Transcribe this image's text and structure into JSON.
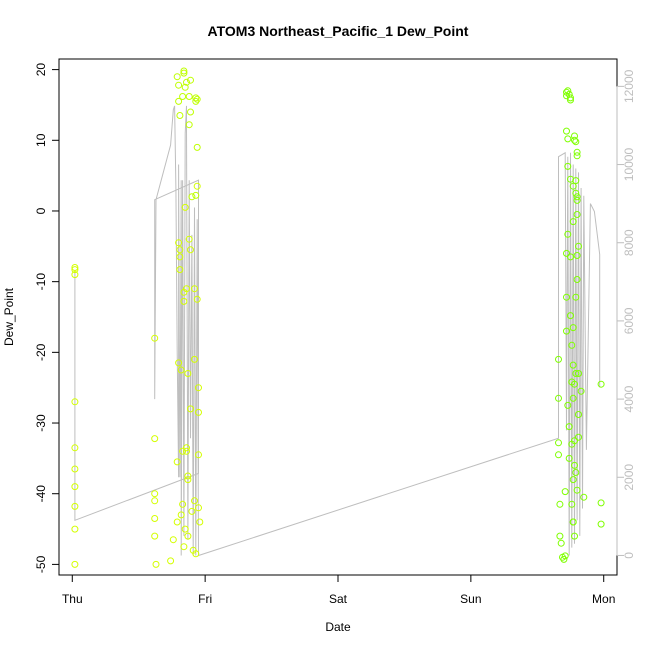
{
  "chart_data": {
    "type": "scatter",
    "title": "ATOM3 Northeast_Pacific_1 Dew_Point",
    "xlabel": "Date",
    "ylabel": "Dew_Point",
    "x_ticks": [
      {
        "label": "Thu",
        "day": 0
      },
      {
        "label": "Fri",
        "day": 1
      },
      {
        "label": "Sat",
        "day": 2
      },
      {
        "label": "Sun",
        "day": 3
      },
      {
        "label": "Mon",
        "day": 4
      }
    ],
    "xlim": [
      -0.1,
      4.1
    ],
    "ylim": [
      -51.5,
      21.5
    ],
    "y_ticks": [
      -50,
      -40,
      -30,
      -20,
      -10,
      0,
      10,
      20
    ],
    "y2lim": [
      -500,
      12700
    ],
    "y2_ticks": [
      0,
      2000,
      4000,
      6000,
      8000,
      10000,
      12000
    ],
    "grid": false,
    "legend": "none",
    "colors": {
      "points_yellow": "#d4ff00",
      "points_green": "#7fff00",
      "line": "#bebebe",
      "axis": "#000000",
      "right_axis": "#bebebe"
    },
    "series": [
      {
        "color": "#d4ff00",
        "points": [
          [
            0.02,
            -8
          ],
          [
            0.02,
            -8.3
          ],
          [
            0.02,
            -9
          ],
          [
            0.02,
            -27
          ],
          [
            0.02,
            -33.5
          ],
          [
            0.02,
            -36.5
          ],
          [
            0.02,
            -39
          ],
          [
            0.02,
            -41.8
          ],
          [
            0.02,
            -45
          ],
          [
            0.02,
            -50
          ],
          [
            0.62,
            -18
          ],
          [
            0.62,
            -32.2
          ],
          [
            0.62,
            -40
          ],
          [
            0.62,
            -41
          ],
          [
            0.62,
            -43.5
          ],
          [
            0.62,
            -46
          ],
          [
            0.63,
            -50
          ],
          [
            0.74,
            -49.5
          ],
          [
            0.76,
            -46.5
          ],
          [
            0.79,
            -35.5
          ],
          [
            0.79,
            -44
          ],
          [
            0.8,
            -4.5
          ],
          [
            0.8,
            -21.5
          ],
          [
            0.81,
            -5.5
          ],
          [
            0.81,
            -6.5
          ],
          [
            0.81,
            -8.3
          ],
          [
            0.82,
            -22.5
          ],
          [
            0.82,
            -43
          ],
          [
            0.83,
            -34
          ],
          [
            0.83,
            -41.5
          ],
          [
            0.84,
            -11.5
          ],
          [
            0.84,
            -12.8
          ],
          [
            0.84,
            -47.5
          ],
          [
            0.85,
            0.5
          ],
          [
            0.85,
            -45
          ],
          [
            0.86,
            -11
          ],
          [
            0.86,
            -33.5
          ],
          [
            0.86,
            -34
          ],
          [
            0.87,
            -37.5
          ],
          [
            0.87,
            -38
          ],
          [
            0.87,
            -23
          ],
          [
            0.87,
            -46
          ],
          [
            0.88,
            -4
          ],
          [
            0.89,
            -5.5
          ],
          [
            0.89,
            -28
          ],
          [
            0.9,
            -42.5
          ],
          [
            0.91,
            -48
          ],
          [
            0.92,
            -11
          ],
          [
            0.92,
            -21
          ],
          [
            0.92,
            -41
          ],
          [
            0.93,
            -48.5
          ],
          [
            0.94,
            3.5
          ],
          [
            0.94,
            -12.5
          ],
          [
            0.95,
            -25
          ],
          [
            0.95,
            -28.5
          ],
          [
            0.95,
            -34.5
          ],
          [
            0.95,
            -42
          ],
          [
            0.96,
            -44
          ]
        ]
      },
      {
        "color": "#bfff00",
        "points": [
          [
            0.79,
            19
          ],
          [
            0.8,
            17.8
          ],
          [
            0.8,
            15.5
          ],
          [
            0.81,
            13.5
          ],
          [
            0.83,
            16.2
          ],
          [
            0.84,
            19.8
          ],
          [
            0.84,
            19.5
          ],
          [
            0.85,
            17.5
          ],
          [
            0.86,
            18.2
          ],
          [
            0.88,
            16.2
          ],
          [
            0.88,
            12.2
          ],
          [
            0.89,
            18.5
          ],
          [
            0.89,
            14
          ],
          [
            0.93,
            16
          ],
          [
            0.93,
            15.5
          ],
          [
            0.94,
            15.8
          ],
          [
            0.94,
            9
          ],
          [
            0.9,
            2
          ],
          [
            0.93,
            2.2
          ]
        ]
      },
      {
        "color": "#7fff00",
        "points": [
          [
            3.66,
            -21
          ],
          [
            3.66,
            -26.5
          ],
          [
            3.66,
            -32.8
          ],
          [
            3.66,
            -34.5
          ],
          [
            3.67,
            -41.5
          ],
          [
            3.67,
            -46
          ],
          [
            3.68,
            -47
          ],
          [
            3.69,
            -49
          ],
          [
            3.7,
            -49.3
          ],
          [
            3.71,
            -48.8
          ],
          [
            3.71,
            -39.7
          ],
          [
            3.72,
            -17
          ],
          [
            3.72,
            -12.2
          ],
          [
            3.72,
            -6
          ],
          [
            3.73,
            -3.3
          ],
          [
            3.73,
            -27.5
          ],
          [
            3.74,
            -30.5
          ],
          [
            3.74,
            -35
          ],
          [
            3.75,
            -14.8
          ],
          [
            3.75,
            -6.5
          ],
          [
            3.76,
            -24.2
          ],
          [
            3.76,
            -33
          ],
          [
            3.77,
            -38
          ],
          [
            3.77,
            -44
          ],
          [
            3.78,
            -46
          ],
          [
            3.72,
            16.8
          ],
          [
            3.72,
            16.3
          ],
          [
            3.73,
            17
          ],
          [
            3.74,
            16.5
          ],
          [
            3.75,
            16
          ],
          [
            3.75,
            15.7
          ],
          [
            3.72,
            11.3
          ],
          [
            3.73,
            10.2
          ],
          [
            3.78,
            10.6
          ],
          [
            3.78,
            10
          ],
          [
            3.79,
            9.8
          ],
          [
            3.8,
            8.3
          ],
          [
            3.8,
            7.8
          ],
          [
            3.73,
            6.3
          ],
          [
            3.75,
            4.5
          ],
          [
            3.77,
            3.5
          ],
          [
            3.79,
            4.3
          ],
          [
            3.79,
            2.5
          ],
          [
            3.8,
            2
          ],
          [
            3.77,
            -1.5
          ],
          [
            3.8,
            1.5
          ],
          [
            3.8,
            -0.5
          ],
          [
            3.81,
            -5
          ],
          [
            3.8,
            -6.3
          ],
          [
            3.8,
            -9.7
          ],
          [
            3.79,
            -12.2
          ],
          [
            3.77,
            -16.5
          ],
          [
            3.76,
            -19
          ],
          [
            3.79,
            -23
          ],
          [
            3.77,
            -21.8
          ],
          [
            3.78,
            -24.5
          ],
          [
            3.77,
            -26.5
          ],
          [
            3.78,
            -32.5
          ],
          [
            3.78,
            -36
          ],
          [
            3.79,
            -37
          ],
          [
            3.8,
            -39.5
          ],
          [
            3.81,
            -23
          ],
          [
            3.81,
            -28.8
          ],
          [
            3.81,
            -32
          ],
          [
            3.76,
            -41.5
          ],
          [
            3.77,
            -44
          ],
          [
            3.83,
            -25.5
          ],
          [
            3.85,
            -40.5
          ],
          [
            3.98,
            -24.5
          ],
          [
            3.98,
            -41.3
          ],
          [
            3.98,
            -44.3
          ]
        ]
      }
    ],
    "line_right_axis": [
      [
        0.02,
        7300
      ],
      [
        0.02,
        4000
      ],
      [
        0.02,
        900
      ],
      [
        0.95,
        2100
      ],
      [
        0.95,
        9600
      ],
      [
        0.62,
        9100
      ],
      [
        0.62,
        4000
      ],
      [
        0.63,
        9100
      ],
      [
        0.74,
        10500
      ],
      [
        0.76,
        11400
      ],
      [
        0.77,
        11500
      ],
      [
        0.78,
        9400
      ],
      [
        0.79,
        5200
      ],
      [
        0.8,
        2000
      ],
      [
        0.8,
        10000
      ],
      [
        0.81,
        2000
      ],
      [
        0.82,
        9600
      ],
      [
        0.82,
        0
      ],
      [
        0.83,
        9600
      ],
      [
        0.84,
        500
      ],
      [
        0.85,
        10800
      ],
      [
        0.86,
        11500
      ],
      [
        0.86,
        11000
      ],
      [
        0.87,
        400
      ],
      [
        0.88,
        9600
      ],
      [
        0.89,
        3000
      ],
      [
        0.9,
        8200
      ],
      [
        0.91,
        0
      ],
      [
        0.92,
        8900
      ],
      [
        0.93,
        0
      ],
      [
        0.94,
        8600
      ],
      [
        0.95,
        0
      ],
      [
        3.66,
        3000
      ],
      [
        3.66,
        10200
      ],
      [
        3.71,
        10300
      ],
      [
        3.72,
        3200
      ],
      [
        3.73,
        10200
      ],
      [
        3.74,
        0
      ],
      [
        3.75,
        10300
      ],
      [
        3.76,
        200
      ],
      [
        3.77,
        10000
      ],
      [
        3.78,
        300
      ],
      [
        3.79,
        9900
      ],
      [
        3.8,
        900
      ],
      [
        3.81,
        9800
      ],
      [
        3.82,
        500
      ],
      [
        3.83,
        9400
      ],
      [
        3.84,
        1200
      ],
      [
        3.85,
        9200
      ],
      [
        3.87,
        2700
      ],
      [
        3.9,
        9000
      ],
      [
        3.93,
        8800
      ],
      [
        3.97,
        7700
      ],
      [
        3.97,
        4300
      ]
    ]
  }
}
